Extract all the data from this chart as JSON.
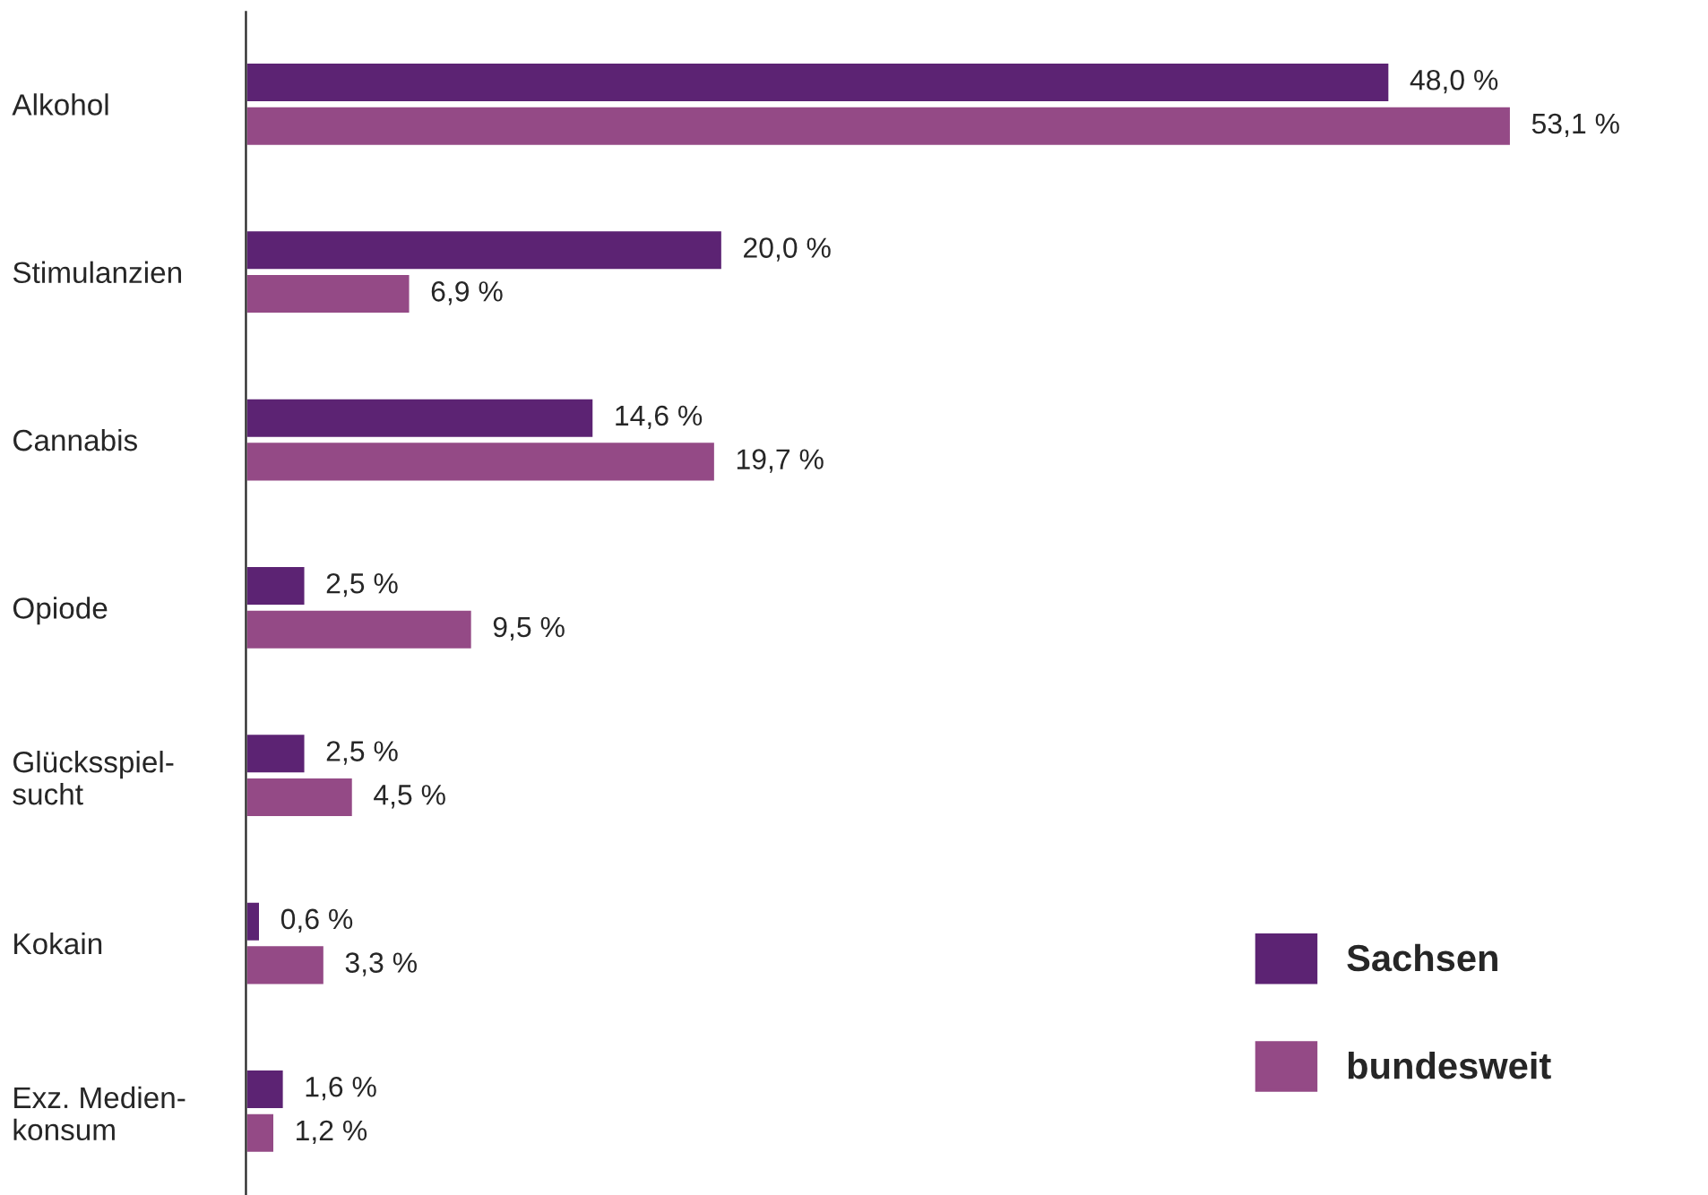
{
  "chart_data": {
    "type": "bar",
    "orientation": "horizontal",
    "categories": [
      "Alkohol",
      "Stimulanzien",
      "Cannabis",
      "Opiode",
      "Glücksspiel-\nsucht",
      "Kokain",
      "Exz. Medien-\nkonsum"
    ],
    "series": [
      {
        "name": "Sachsen",
        "color": "#5c2373",
        "values": [
          48.0,
          20.0,
          14.6,
          2.5,
          2.5,
          0.6,
          1.6
        ],
        "value_labels": [
          "48,0 %",
          "20,0 %",
          "14,6 %",
          "2,5 %",
          "2,5 %",
          "0,6 %",
          "1,6 %"
        ]
      },
      {
        "name": "bundesweit",
        "color": "#944a86",
        "values": [
          53.1,
          6.9,
          19.7,
          9.5,
          4.5,
          3.3,
          1.2
        ],
        "value_labels": [
          "53,1 %",
          "6,9 %",
          "19,7 %",
          "9,5 %",
          "4,5 %",
          "3,3 %",
          "1,2 %"
        ]
      }
    ],
    "legend": "bottom right",
    "grid": false
  }
}
